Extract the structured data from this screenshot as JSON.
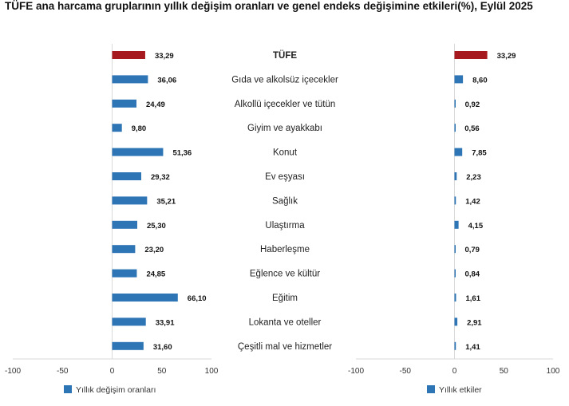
{
  "chart_data": [
    {
      "type": "bar",
      "orientation": "horizontal",
      "title": "TÜFE ana harcama gruplarının yıllık değişim oranları ve genel endeks değişimine etkileri(%), Eylül 2025",
      "categories": [
        "TÜFE",
        "Gıda ve alkolsüz içecekler",
        "Alkollü içecekler ve tütün",
        "Giyim ve ayakkabı",
        "Konut",
        "Ev eşyası",
        "Sağlık",
        "Ulaştırma",
        "Haberleşme",
        "Eğlence ve kültür",
        "Eğitim",
        "Lokanta ve oteller",
        "Çeşitli mal ve hizmetler"
      ],
      "series": [
        {
          "name": "Yıllık değişim oranları",
          "values": [
            33.29,
            36.06,
            24.49,
            9.8,
            51.36,
            29.32,
            35.21,
            25.3,
            23.2,
            24.85,
            66.1,
            33.91,
            31.6
          ],
          "labels": [
            "33,29",
            "36,06",
            "24,49",
            "9,80",
            "51,36",
            "29,32",
            "35,21",
            "25,30",
            "23,20",
            "24,85",
            "66,10",
            "33,91",
            "31,60"
          ]
        }
      ],
      "xlim": [
        -100,
        100
      ],
      "xticks": [
        "-100",
        "-50",
        "0",
        "50",
        "100"
      ],
      "legend": "bottom-left"
    },
    {
      "type": "bar",
      "orientation": "horizontal",
      "series": [
        {
          "name": "Yıllık etkiler",
          "values": [
            33.29,
            8.6,
            0.92,
            0.56,
            7.85,
            2.23,
            1.42,
            4.15,
            0.79,
            0.84,
            1.61,
            2.91,
            1.41
          ],
          "labels": [
            "33,29",
            "8,60",
            "0,92",
            "0,56",
            "7,85",
            "2,23",
            "1,42",
            "4,15",
            "0,79",
            "0,84",
            "1,61",
            "2,91",
            "1,41"
          ]
        }
      ],
      "xlim": [
        -100,
        100
      ],
      "xticks": [
        "-100",
        "-50",
        "0",
        "50",
        "100"
      ],
      "legend": "bottom-center"
    }
  ],
  "colors": {
    "highlight": "#a5191f",
    "bar": "#2e75b6",
    "grid": "#d9d9d9"
  }
}
